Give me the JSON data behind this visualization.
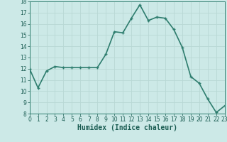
{
  "x": [
    0,
    1,
    2,
    3,
    4,
    5,
    6,
    7,
    8,
    9,
    10,
    11,
    12,
    13,
    14,
    15,
    16,
    17,
    18,
    19,
    20,
    21,
    22,
    23
  ],
  "y": [
    12.0,
    10.3,
    11.8,
    12.2,
    12.1,
    12.1,
    12.1,
    12.1,
    12.1,
    13.3,
    15.3,
    15.2,
    16.5,
    17.7,
    16.3,
    16.6,
    16.5,
    15.5,
    13.9,
    11.3,
    10.7,
    9.3,
    8.1,
    8.7
  ],
  "xlabel": "Humidex (Indice chaleur)",
  "ylim": [
    8,
    18
  ],
  "xlim": [
    0,
    23
  ],
  "yticks": [
    8,
    9,
    10,
    11,
    12,
    13,
    14,
    15,
    16,
    17,
    18
  ],
  "xticks": [
    0,
    1,
    2,
    3,
    4,
    5,
    6,
    7,
    8,
    9,
    10,
    11,
    12,
    13,
    14,
    15,
    16,
    17,
    18,
    19,
    20,
    21,
    22,
    23
  ],
  "line_color": "#2e7d6e",
  "marker": "+",
  "bg_color": "#cce9e7",
  "grid_color": "#b8d8d5",
  "font_color": "#1a5c52",
  "xlabel_fontsize": 7,
  "tick_fontsize": 5.5,
  "linewidth": 1.2,
  "markersize": 3.5,
  "markeredgewidth": 1.0
}
